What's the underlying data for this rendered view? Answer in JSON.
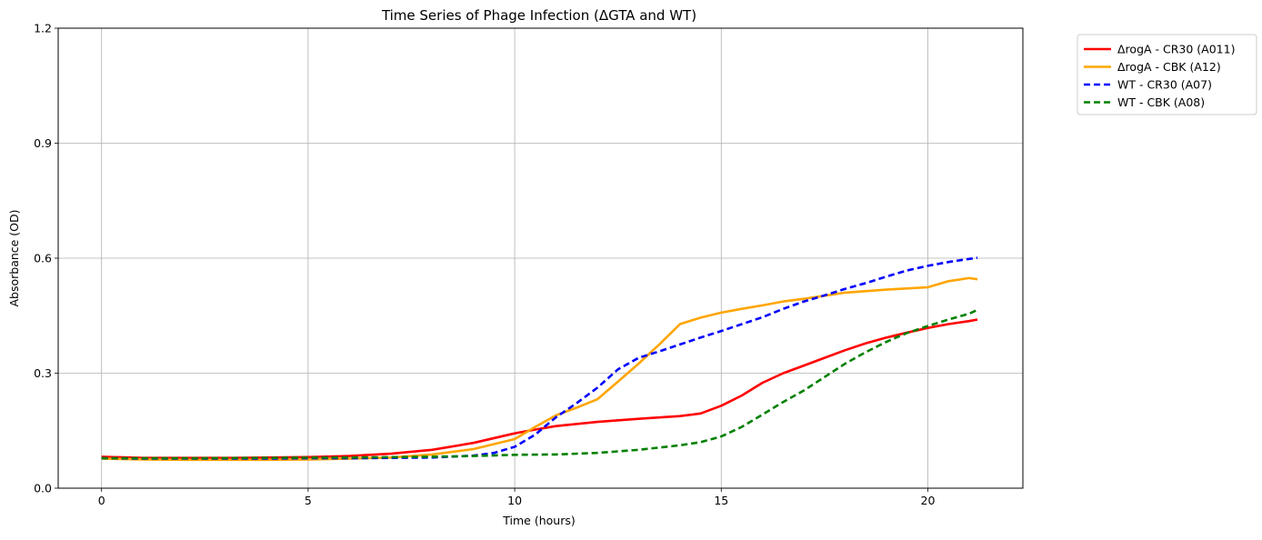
{
  "chart_data": {
    "type": "line",
    "title": "Time Series of Phage Infection (ΔGTA and WT)",
    "xlabel": "Time (hours)",
    "ylabel": "Absorbance (OD)",
    "xlim": [
      -1.05,
      22.3
    ],
    "ylim": [
      0.0,
      1.2
    ],
    "xticks": [
      0,
      5,
      10,
      15,
      20
    ],
    "xtick_labels": [
      "0",
      "5",
      "10",
      "15",
      "20"
    ],
    "yticks": [
      0.0,
      0.3,
      0.6,
      0.9,
      1.2
    ],
    "ytick_labels": [
      "0.0",
      "0.3",
      "0.6",
      "0.9",
      "1.2"
    ],
    "grid": true,
    "legend_position": "outside-top-right",
    "series": [
      {
        "name": "ΔrogA - CR30 (A011)",
        "color": "#ff0000",
        "style": "solid",
        "points": [
          [
            0,
            0.082
          ],
          [
            1,
            0.079
          ],
          [
            2,
            0.079
          ],
          [
            3,
            0.079
          ],
          [
            4,
            0.08
          ],
          [
            5,
            0.081
          ],
          [
            6,
            0.084
          ],
          [
            7,
            0.09
          ],
          [
            8,
            0.1
          ],
          [
            9,
            0.118
          ],
          [
            10,
            0.143
          ],
          [
            10.5,
            0.153
          ],
          [
            11,
            0.162
          ],
          [
            12,
            0.173
          ],
          [
            13,
            0.181
          ],
          [
            14,
            0.188
          ],
          [
            14.5,
            0.195
          ],
          [
            15,
            0.215
          ],
          [
            15.5,
            0.242
          ],
          [
            16,
            0.275
          ],
          [
            16.5,
            0.3
          ],
          [
            17,
            0.32
          ],
          [
            17.5,
            0.34
          ],
          [
            18,
            0.36
          ],
          [
            18.5,
            0.378
          ],
          [
            19,
            0.393
          ],
          [
            19.5,
            0.406
          ],
          [
            20,
            0.418
          ],
          [
            20.5,
            0.428
          ],
          [
            21,
            0.436
          ],
          [
            21.2,
            0.44
          ]
        ]
      },
      {
        "name": "ΔrogA - CBK (A12)",
        "color": "#ffa500",
        "style": "solid",
        "points": [
          [
            0,
            0.077
          ],
          [
            1,
            0.075
          ],
          [
            2,
            0.074
          ],
          [
            3,
            0.074
          ],
          [
            4,
            0.074
          ],
          [
            5,
            0.075
          ],
          [
            6,
            0.077
          ],
          [
            7,
            0.08
          ],
          [
            8,
            0.088
          ],
          [
            9,
            0.102
          ],
          [
            10,
            0.128
          ],
          [
            10.5,
            0.16
          ],
          [
            11,
            0.19
          ],
          [
            11.5,
            0.21
          ],
          [
            12,
            0.232
          ],
          [
            12.5,
            0.278
          ],
          [
            13,
            0.325
          ],
          [
            13.5,
            0.375
          ],
          [
            14,
            0.428
          ],
          [
            14.5,
            0.445
          ],
          [
            15,
            0.458
          ],
          [
            15.5,
            0.468
          ],
          [
            16,
            0.477
          ],
          [
            16.5,
            0.487
          ],
          [
            17,
            0.494
          ],
          [
            17.5,
            0.502
          ],
          [
            18,
            0.51
          ],
          [
            19,
            0.518
          ],
          [
            20,
            0.524
          ],
          [
            20.5,
            0.54
          ],
          [
            21,
            0.548
          ],
          [
            21.2,
            0.545
          ]
        ]
      },
      {
        "name": "WT - CR30 (A07)",
        "color": "#0000ff",
        "style": "dashed",
        "points": [
          [
            0,
            0.078
          ],
          [
            1,
            0.077
          ],
          [
            2,
            0.077
          ],
          [
            3,
            0.077
          ],
          [
            4,
            0.077
          ],
          [
            5,
            0.078
          ],
          [
            6,
            0.078
          ],
          [
            7,
            0.079
          ],
          [
            8,
            0.08
          ],
          [
            9,
            0.085
          ],
          [
            9.5,
            0.092
          ],
          [
            10,
            0.108
          ],
          [
            10.5,
            0.14
          ],
          [
            11,
            0.185
          ],
          [
            11.5,
            0.222
          ],
          [
            12,
            0.262
          ],
          [
            12.5,
            0.31
          ],
          [
            13,
            0.34
          ],
          [
            13.5,
            0.357
          ],
          [
            14,
            0.375
          ],
          [
            14.5,
            0.393
          ],
          [
            15,
            0.41
          ],
          [
            15.5,
            0.428
          ],
          [
            16,
            0.446
          ],
          [
            16.5,
            0.468
          ],
          [
            17,
            0.487
          ],
          [
            17.5,
            0.503
          ],
          [
            18,
            0.52
          ],
          [
            18.5,
            0.535
          ],
          [
            19,
            0.552
          ],
          [
            19.5,
            0.568
          ],
          [
            20,
            0.58
          ],
          [
            20.5,
            0.59
          ],
          [
            21,
            0.598
          ],
          [
            21.2,
            0.601
          ]
        ]
      },
      {
        "name": "WT - CBK (A08)",
        "color": "#008000",
        "style": "dashed",
        "points": [
          [
            0,
            0.078
          ],
          [
            2,
            0.078
          ],
          [
            4,
            0.079
          ],
          [
            6,
            0.08
          ],
          [
            8,
            0.082
          ],
          [
            9,
            0.084
          ],
          [
            10,
            0.087
          ],
          [
            11,
            0.088
          ],
          [
            12,
            0.092
          ],
          [
            13,
            0.1
          ],
          [
            14,
            0.112
          ],
          [
            14.5,
            0.12
          ],
          [
            15,
            0.135
          ],
          [
            15.5,
            0.16
          ],
          [
            16,
            0.192
          ],
          [
            16.5,
            0.225
          ],
          [
            17,
            0.255
          ],
          [
            17.5,
            0.29
          ],
          [
            18,
            0.325
          ],
          [
            18.5,
            0.355
          ],
          [
            19,
            0.382
          ],
          [
            19.5,
            0.405
          ],
          [
            20,
            0.423
          ],
          [
            20.5,
            0.44
          ],
          [
            21,
            0.455
          ],
          [
            21.2,
            0.465
          ]
        ]
      }
    ]
  }
}
